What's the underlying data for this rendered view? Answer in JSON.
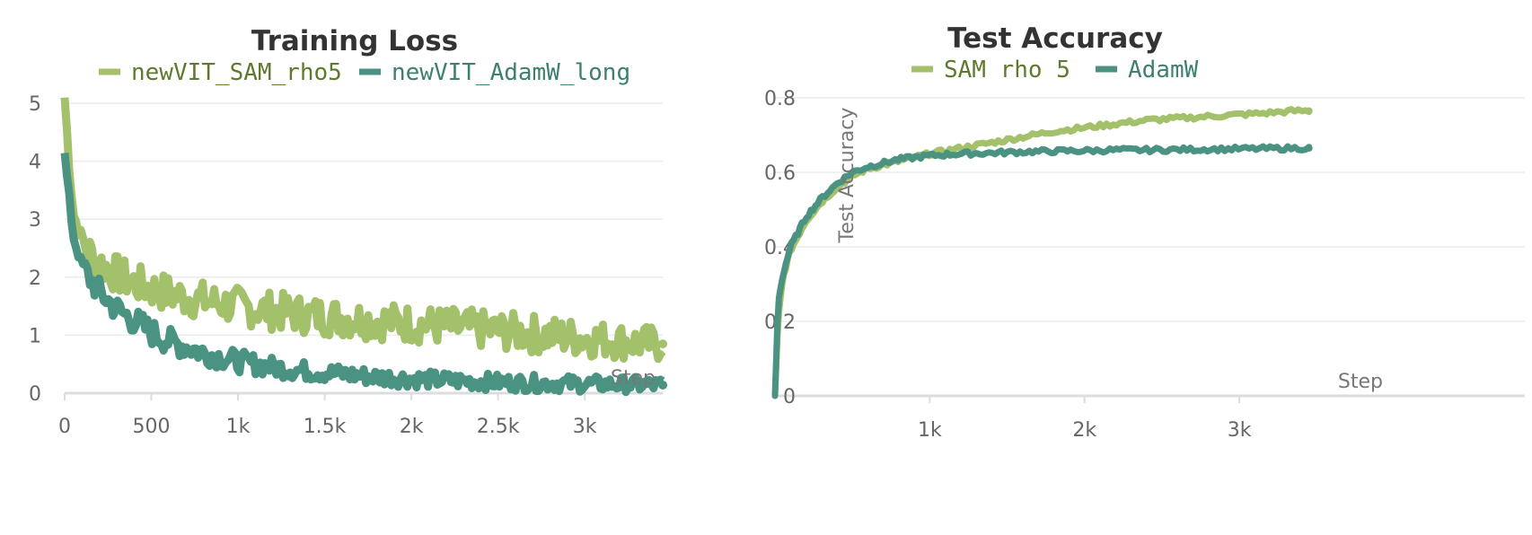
{
  "chart_data": [
    {
      "type": "line",
      "title": "Training Loss",
      "xlabel": "Step",
      "ylabel": "",
      "xlim": [
        0,
        3450
      ],
      "ylim": [
        0,
        5
      ],
      "xticks": [
        0,
        500,
        1000,
        1500,
        2000,
        2500,
        3000
      ],
      "xtick_labels": [
        "0",
        "500",
        "1k",
        "1.5k",
        "2k",
        "2.5k",
        "3k"
      ],
      "yticks": [
        0,
        1,
        2,
        3,
        4,
        5
      ],
      "ytick_labels": [
        "0",
        "1",
        "2",
        "3",
        "4",
        "5"
      ],
      "grid": true,
      "legend": "top",
      "series": [
        {
          "name": "newVIT_SAM_rho5",
          "color": "#a3c06a",
          "x": [
            0,
            25,
            50,
            100,
            150,
            200,
            300,
            400,
            500,
            600,
            700,
            800,
            900,
            1000,
            1200,
            1400,
            1600,
            1800,
            2000,
            2200,
            2400,
            2600,
            2800,
            3000,
            3200,
            3400,
            3450
          ],
          "values": [
            5.1,
            4.0,
            3.1,
            2.65,
            2.4,
            2.25,
            2.05,
            1.9,
            1.8,
            1.72,
            1.65,
            1.6,
            1.55,
            1.5,
            1.42,
            1.35,
            1.3,
            1.25,
            1.2,
            1.15,
            1.1,
            1.05,
            1.0,
            0.95,
            0.9,
            0.85,
            0.85
          ],
          "noise": 0.28
        },
        {
          "name": "newVIT_AdamW_long",
          "color": "#4a9282",
          "x": [
            0,
            25,
            50,
            100,
            150,
            200,
            300,
            400,
            500,
            600,
            700,
            800,
            900,
            1000,
            1200,
            1400,
            1600,
            1800,
            2000,
            2200,
            2400,
            2600,
            2800,
            3000,
            3200,
            3400,
            3450
          ],
          "values": [
            4.1,
            3.4,
            2.7,
            2.2,
            1.95,
            1.75,
            1.45,
            1.25,
            1.05,
            0.9,
            0.8,
            0.7,
            0.62,
            0.55,
            0.45,
            0.38,
            0.33,
            0.28,
            0.25,
            0.22,
            0.2,
            0.18,
            0.17,
            0.16,
            0.15,
            0.14,
            0.14
          ],
          "noise": 0.2
        }
      ]
    },
    {
      "type": "line",
      "title": "Test Accuracy",
      "xlabel": "Step",
      "ylabel": "Test Accuracy",
      "xlim": [
        0,
        3800
      ],
      "ylim": [
        0,
        0.8
      ],
      "xticks": [
        1000,
        2000,
        3000
      ],
      "xtick_labels": [
        "1k",
        "2k",
        "3k"
      ],
      "yticks": [
        0,
        0.2,
        0.4,
        0.6,
        0.8
      ],
      "ytick_labels": [
        "0",
        "0.2",
        "0.4",
        "0.6",
        "0.8"
      ],
      "grid": true,
      "legend": "top",
      "series": [
        {
          "name": "SAM rho 5",
          "color": "#a3c06a",
          "x": [
            0,
            20,
            40,
            60,
            100,
            150,
            200,
            300,
            400,
            500,
            600,
            700,
            800,
            900,
            1000,
            1200,
            1400,
            1600,
            1800,
            2000,
            2200,
            2400,
            2600,
            2800,
            3000,
            3200,
            3350,
            3450
          ],
          "values": [
            0.0,
            0.2,
            0.28,
            0.33,
            0.39,
            0.43,
            0.47,
            0.52,
            0.56,
            0.59,
            0.61,
            0.62,
            0.63,
            0.64,
            0.65,
            0.665,
            0.68,
            0.695,
            0.71,
            0.72,
            0.73,
            0.74,
            0.745,
            0.75,
            0.755,
            0.76,
            0.765,
            0.765
          ]
        },
        {
          "name": "AdamW",
          "color": "#4a9282",
          "x": [
            0,
            20,
            40,
            60,
            100,
            150,
            200,
            300,
            400,
            500,
            600,
            700,
            800,
            900,
            1000,
            1200,
            1400,
            1600,
            1800,
            2000,
            2200,
            2400,
            2600,
            2800,
            3000,
            3200,
            3350,
            3450
          ],
          "values": [
            0.0,
            0.25,
            0.3,
            0.34,
            0.4,
            0.44,
            0.48,
            0.53,
            0.57,
            0.6,
            0.615,
            0.625,
            0.635,
            0.64,
            0.645,
            0.65,
            0.652,
            0.655,
            0.657,
            0.658,
            0.66,
            0.66,
            0.661,
            0.662,
            0.663,
            0.664,
            0.665,
            0.665
          ]
        }
      ]
    }
  ]
}
